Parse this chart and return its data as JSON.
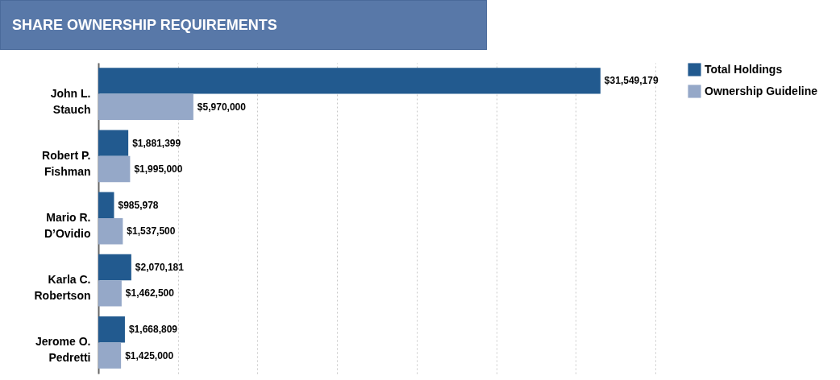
{
  "chart_data": {
    "type": "bar",
    "orientation": "horizontal",
    "title": "SHARE OWNERSHIP REQUIREMENTS",
    "categories": [
      "John L. Stauch",
      "Robert P. Fishman",
      "Mario R. D’Ovidio",
      "Karla C. Robertson",
      "Jerome O. Pedretti"
    ],
    "series": [
      {
        "name": "Total Holdings",
        "color": "#225a8f",
        "values": [
          31549179,
          1881399,
          985978,
          2070181,
          1668809
        ],
        "value_labels": [
          "$31,549,179",
          "$1,881,399",
          "$985,978",
          "$2,070,181",
          "$1,668,809"
        ]
      },
      {
        "name": "Ownership Guideline",
        "color": "#95a8c8",
        "values": [
          5970000,
          1995000,
          1537500,
          1462500,
          1425000
        ],
        "value_labels": [
          "$5,970,000",
          "$1,995,000",
          "$1,537,500",
          "$1,462,500",
          "$1,425,000"
        ]
      }
    ],
    "xlim": [
      0,
      35000000
    ],
    "xticks": [
      {
        "value": 0,
        "label": null
      },
      {
        "value": 5000000,
        "label": null
      },
      {
        "value": 10000000,
        "label": null
      },
      {
        "value": 15000000,
        "label": null
      },
      {
        "value": 20000000,
        "label": null
      },
      {
        "value": 25000000,
        "label": null
      },
      {
        "value": 30000000,
        "label": null
      },
      {
        "value": 35000000,
        "label": null
      }
    ],
    "grid": "x",
    "legend": "right"
  }
}
